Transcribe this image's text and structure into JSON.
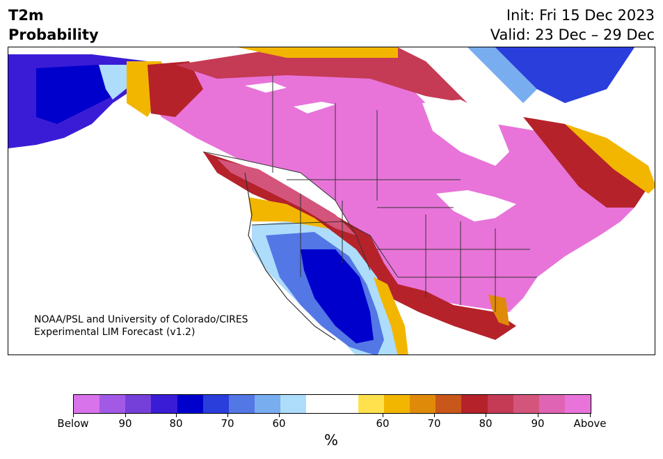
{
  "title": {
    "line1": "T2m",
    "line2": "Probability"
  },
  "header_right": {
    "init": "Init: Fri 15 Dec 2023",
    "valid": "Valid: 23 Dec – 29 Dec"
  },
  "credit": {
    "line1": "NOAA/PSL and University of Colorado/CIRES",
    "line2": "Experimental LIM Forecast (v1.2)"
  },
  "colorbar": {
    "colors": [
      "#d873ec",
      "#a259e6",
      "#7540d9",
      "#3b1cd6",
      "#0000cd",
      "#2a3edb",
      "#5377e5",
      "#78adf0",
      "#aedcfb",
      "#ffffff",
      "#ffffff",
      "#ffe14d",
      "#f2b600",
      "#e08a0a",
      "#c9561a",
      "#b5222a",
      "#c53a55",
      "#d4557c",
      "#df64b4",
      "#e874d9"
    ],
    "tick_labels": [
      "Below",
      "90",
      "80",
      "70",
      "60",
      "60",
      "70",
      "80",
      "90",
      "Above"
    ],
    "unit_label": "%"
  },
  "map": {
    "region": "North America",
    "field": "2m temperature probability",
    "colors": {
      "above_high": "#e874d9",
      "above_mid": "#d4557c",
      "above_low": "#b5222a",
      "warm": "#e08a0a",
      "yellow": "#f2b600",
      "below_high": "#0000cd",
      "below_mid": "#5377e5",
      "below_low": "#aedcfb",
      "below_purple": "#7540d9",
      "border": "#333333"
    }
  }
}
